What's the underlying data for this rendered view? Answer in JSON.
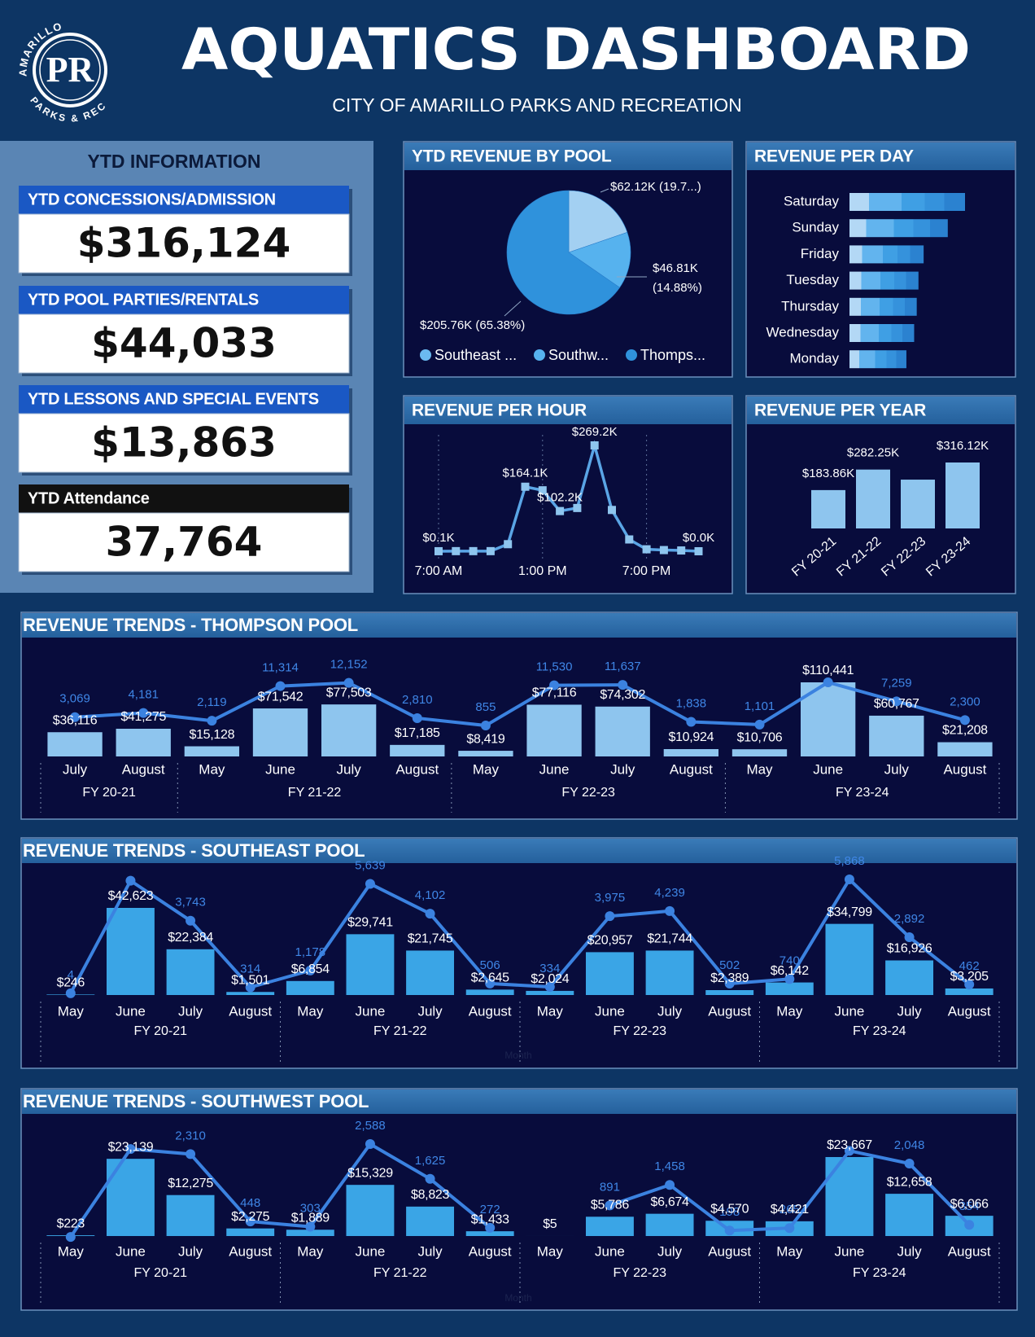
{
  "header": {
    "title": "AQUATICS DASHBOARD",
    "subtitle": "CITY OF AMARILLO PARKS AND RECREATION",
    "logo": {
      "top": "AMARILLO",
      "bottom": "PARKS & REC",
      "monogram": "PR"
    }
  },
  "ytd": {
    "title": "YTD INFORMATION",
    "cards": [
      {
        "label": "YTD CONCESSIONS/ADMISSION",
        "value": "$316,124"
      },
      {
        "label": "YTD POOL PARTIES/RENTALS",
        "value": "$44,033"
      },
      {
        "label": "YTD LESSONS AND SPECIAL EVENTS",
        "value": "$13,863"
      },
      {
        "label": "YTD Attendance",
        "value": "37,764"
      }
    ]
  },
  "chart_data": [
    {
      "type": "pie",
      "title": "YTD REVENUE BY POOL",
      "categories": [
        "Southeast ...",
        "Southw...",
        "Thomps..."
      ],
      "values": [
        62.12,
        46.81,
        205.76
      ],
      "value_labels": [
        "$62.12K (19.7...)",
        "$46.81K (14.88%)",
        "$205.76K (65.38%)"
      ],
      "colors": [
        "#a3d0f2",
        "#56b2ee",
        "#2f92dc"
      ],
      "legend": "bottom"
    },
    {
      "type": "bar",
      "orientation": "horizontal",
      "title": "REVENUE PER DAY",
      "categories": [
        "Saturday",
        "Sunday",
        "Friday",
        "Tuesday",
        "Thursday",
        "Wednesday",
        "Monday"
      ],
      "values": [
        67,
        57,
        43,
        40,
        39,
        37.5,
        33
      ],
      "color": "#3c9be0"
    },
    {
      "type": "line",
      "title": "REVENUE PER HOUR",
      "categories": [
        "7:00 AM",
        null,
        null,
        null,
        null,
        null,
        "1:00 PM",
        null,
        null,
        null,
        null,
        null,
        "7:00 PM",
        null,
        null,
        null
      ],
      "values": [
        0.1,
        0.3,
        0.3,
        0.3,
        18,
        164.1,
        155,
        102.2,
        110,
        269.2,
        105,
        30,
        5,
        3,
        2,
        0
      ],
      "value_labels": [
        "$0.1K",
        null,
        null,
        null,
        null,
        "$164.1K",
        null,
        "$102.2K",
        null,
        "$269.2K",
        null,
        null,
        null,
        null,
        null,
        "$0.0K"
      ],
      "color": "#5aa5e6",
      "marker": "square",
      "grid": true
    },
    {
      "type": "bar",
      "orientation": "vertical",
      "title": "REVENUE PER YEAR",
      "categories": [
        "FY 20-21",
        "FY 21-22",
        "FY 22-23",
        "FY 23-24"
      ],
      "values": [
        183.86,
        282.25,
        234,
        316.12
      ],
      "value_labels": [
        "$183.86K",
        "$282.25K",
        null,
        "$316.12K"
      ],
      "color": "#8ec5ee"
    },
    {
      "type": "combo",
      "title": "REVENUE TRENDS - THOMPSON POOL",
      "groups": [
        {
          "name": "FY 20-21",
          "categories": [
            "July",
            "August"
          ]
        },
        {
          "name": "FY 21-22",
          "categories": [
            "May",
            "June",
            "July",
            "August"
          ]
        },
        {
          "name": "FY 22-23",
          "categories": [
            "May",
            "June",
            "July",
            "August"
          ]
        },
        {
          "name": "FY 23-24",
          "categories": [
            "May",
            "June",
            "July",
            "August"
          ]
        }
      ],
      "series": [
        {
          "type": "bar",
          "color": "#8ec5ee",
          "values": [
            36116,
            41275,
            15128,
            71542,
            77503,
            17185,
            8419,
            77116,
            74302,
            10924,
            10706,
            110441,
            60767,
            21208
          ],
          "value_labels": [
            "$36,116",
            "$41,275",
            "$15,128",
            "$71,542",
            "$77,503",
            "$17,185",
            "$8,419",
            "$77,116",
            "$74,302",
            "$10,924",
            "$10,706",
            "$110,441",
            "$60,767",
            "$21,208"
          ]
        },
        {
          "type": "line",
          "color": "#3b82e0",
          "values": [
            3069,
            4181,
            2119,
            11314,
            12152,
            2810,
            855,
            11530,
            11637,
            1838,
            1101,
            12300,
            7259,
            2300
          ],
          "value_labels": [
            "3,069",
            "4,181",
            "2,119",
            "11,314",
            "12,152",
            "2,810",
            "855",
            "11,530",
            "11,637",
            "1,838",
            "1,101",
            null,
            "7,259",
            "2,300"
          ]
        }
      ]
    },
    {
      "type": "combo",
      "title": "REVENUE TRENDS - SOUTHEAST POOL",
      "x_label": "Month",
      "groups": [
        {
          "name": "FY 20-21",
          "categories": [
            "May",
            "June",
            "July",
            "August"
          ]
        },
        {
          "name": "FY 21-22",
          "categories": [
            "May",
            "June",
            "July",
            "August"
          ]
        },
        {
          "name": "FY 22-23",
          "categories": [
            "May",
            "June",
            "July",
            "August"
          ]
        },
        {
          "name": "FY 23-24",
          "categories": [
            "May",
            "June",
            "July",
            "August"
          ]
        }
      ],
      "series": [
        {
          "type": "bar",
          "color": "#3aa5e6",
          "values": [
            246,
            42623,
            22384,
            1501,
            6854,
            29741,
            21745,
            2645,
            2024,
            20957,
            21744,
            2389,
            6142,
            34799,
            16926,
            3205
          ],
          "value_labels": [
            "$246",
            "$42,623",
            "$22,384",
            "$1,501",
            "$6,854",
            "$29,741",
            "$21,745",
            "$2,645",
            "$2,024",
            "$20,957",
            "$21,744",
            "$2,389",
            "$6,142",
            "$34,799",
            "$16,926",
            "$3,205"
          ]
        },
        {
          "type": "line",
          "color": "#3b82e0",
          "values": [
            4,
            5800,
            3743,
            314,
            1178,
            5639,
            4102,
            506,
            334,
            3975,
            4239,
            502,
            740,
            5868,
            2892,
            462
          ],
          "value_labels": [
            "4",
            null,
            "3,743",
            "314",
            "1,178",
            "5,639",
            "4,102",
            "506",
            "334",
            "3,975",
            "4,239",
            "502",
            "740",
            "5,868",
            "2,892",
            "462"
          ]
        }
      ]
    },
    {
      "type": "combo",
      "title": "REVENUE TRENDS - SOUTHWEST POOL",
      "x_label": "Month",
      "groups": [
        {
          "name": "FY 20-21",
          "categories": [
            "May",
            "June",
            "July",
            "August"
          ]
        },
        {
          "name": "FY 21-22",
          "categories": [
            "May",
            "June",
            "July",
            "August"
          ]
        },
        {
          "name": "FY 22-23",
          "categories": [
            "May",
            "June",
            "July",
            "August"
          ]
        },
        {
          "name": "FY 23-24",
          "categories": [
            "May",
            "June",
            "July",
            "August"
          ]
        }
      ],
      "series": [
        {
          "type": "bar",
          "color": "#3aa5e6",
          "values": [
            223,
            23139,
            12275,
            2275,
            1889,
            15329,
            8823,
            1433,
            5,
            5786,
            6674,
            4570,
            4421,
            23667,
            12658,
            6066
          ],
          "value_labels": [
            "$223",
            "$23,139",
            "$12,275",
            "$2,275",
            "$1,889",
            "$15,329",
            "$8,823",
            "$1,433",
            "$5",
            "$5,786",
            "$6,674",
            "$4,570",
            "$4,421",
            "$23,667",
            "$12,658",
            "$6,066"
          ]
        },
        {
          "type": "line",
          "color": "#3b82e0",
          "values": [
            20,
            2450,
            2310,
            448,
            303,
            2588,
            1625,
            272,
            null,
            891,
            1458,
            198,
            265,
            2400,
            2048,
            354
          ],
          "value_labels": [
            null,
            null,
            "2,310",
            "448",
            "303",
            "2,588",
            "1,625",
            "272",
            null,
            "891",
            "1,458",
            "198",
            "265",
            null,
            "2,048",
            "354"
          ]
        }
      ]
    }
  ]
}
